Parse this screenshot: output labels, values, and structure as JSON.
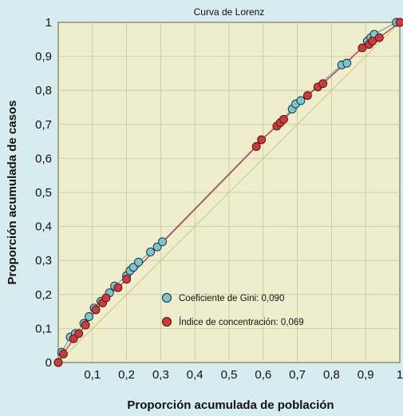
{
  "chart_data": {
    "type": "line",
    "title": "Curva de Lorenz",
    "xlabel": "Proporción acumulada de población",
    "ylabel": "Proporción acumulada de casos",
    "xlim": [
      0,
      1
    ],
    "ylim": [
      0,
      1
    ],
    "x_ticks": [
      "0,1",
      "0,2",
      "0,3",
      "0,4",
      "0,5",
      "0,6",
      "0,7",
      "0,8",
      "0,9",
      "1"
    ],
    "y_ticks": [
      "0",
      "0,1",
      "0,2",
      "0,3",
      "0,4",
      "0,5",
      "0,6",
      "0,7",
      "0,8",
      "0,9",
      "1"
    ],
    "grid": true,
    "background_color": "#eeeecc",
    "page_color": "#d7ecee",
    "grid_color": "#c6c6a0",
    "equality_line_color": "#c9c97a",
    "legend_position": "bottom-right",
    "series": [
      {
        "name": "Coeficiente de Gini: 0,090",
        "color": "#72c8d4",
        "line_color": "#5cb8c8",
        "points": [
          [
            0,
            0
          ],
          [
            0.01,
            0.03
          ],
          [
            0.035,
            0.075
          ],
          [
            0.05,
            0.085
          ],
          [
            0.075,
            0.115
          ],
          [
            0.09,
            0.135
          ],
          [
            0.105,
            0.16
          ],
          [
            0.125,
            0.18
          ],
          [
            0.15,
            0.205
          ],
          [
            0.165,
            0.225
          ],
          [
            0.2,
            0.255
          ],
          [
            0.21,
            0.27
          ],
          [
            0.22,
            0.28
          ],
          [
            0.235,
            0.295
          ],
          [
            0.27,
            0.325
          ],
          [
            0.29,
            0.34
          ],
          [
            0.305,
            0.355
          ],
          [
            0.685,
            0.745
          ],
          [
            0.695,
            0.76
          ],
          [
            0.71,
            0.77
          ],
          [
            0.83,
            0.875
          ],
          [
            0.845,
            0.88
          ],
          [
            0.905,
            0.945
          ],
          [
            0.915,
            0.955
          ],
          [
            0.925,
            0.965
          ],
          [
            0.99,
            1
          ]
        ]
      },
      {
        "name": "Índice de concentración: 0,069",
        "color": "#dd3333",
        "line_color": "#cc3333",
        "points": [
          [
            0,
            0
          ],
          [
            0.015,
            0.025
          ],
          [
            0.045,
            0.07
          ],
          [
            0.06,
            0.085
          ],
          [
            0.08,
            0.11
          ],
          [
            0.11,
            0.155
          ],
          [
            0.13,
            0.175
          ],
          [
            0.14,
            0.19
          ],
          [
            0.175,
            0.22
          ],
          [
            0.2,
            0.245
          ],
          [
            0.58,
            0.635
          ],
          [
            0.595,
            0.655
          ],
          [
            0.64,
            0.695
          ],
          [
            0.65,
            0.705
          ],
          [
            0.66,
            0.715
          ],
          [
            0.73,
            0.785
          ],
          [
            0.76,
            0.81
          ],
          [
            0.775,
            0.82
          ],
          [
            0.89,
            0.925
          ],
          [
            0.91,
            0.935
          ],
          [
            0.92,
            0.945
          ],
          [
            0.94,
            0.955
          ],
          [
            1,
            1
          ]
        ]
      }
    ]
  }
}
